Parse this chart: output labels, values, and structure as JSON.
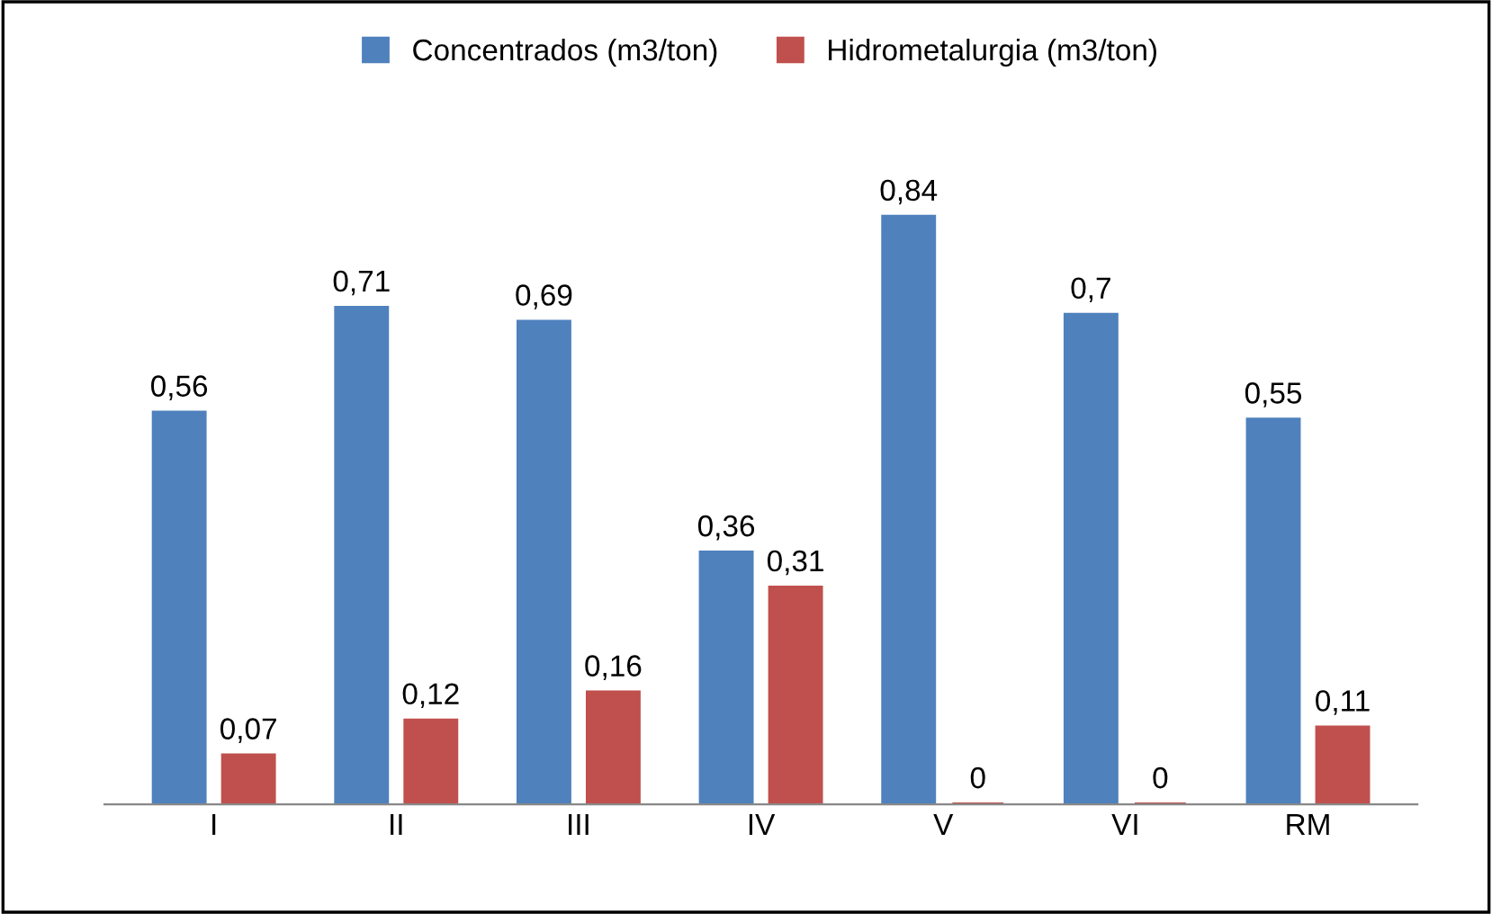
{
  "chart_data": {
    "type": "bar",
    "categories": [
      "I",
      "II",
      "III",
      "IV",
      "V",
      "VI",
      "RM"
    ],
    "series": [
      {
        "name": "Concentrados (m3/ton)",
        "color": "#4f81bd",
        "values": [
          0.56,
          0.71,
          0.69,
          0.36,
          0.84,
          0.7,
          0.55
        ],
        "value_labels": [
          "0,56",
          "0,71",
          "0,69",
          "0,36",
          "0,84",
          "0,7",
          "0,55"
        ]
      },
      {
        "name": "Hidrometalurgia (m3/ton)",
        "color": "#c0504d",
        "values": [
          0.07,
          0.12,
          0.16,
          0.31,
          0,
          0,
          0.11
        ],
        "value_labels": [
          "0,07",
          "0,12",
          "0,16",
          "0,31",
          "0",
          "0",
          "0,11"
        ]
      }
    ],
    "legend": "top",
    "grid": false,
    "tick_labels": "x"
  }
}
